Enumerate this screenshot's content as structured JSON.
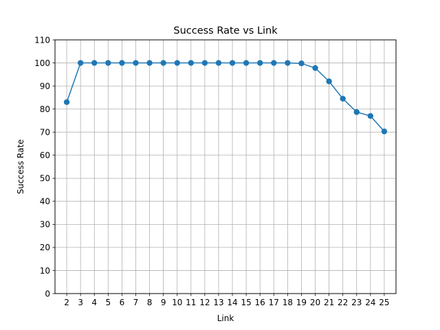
{
  "chart_data": {
    "type": "line",
    "title": "Success Rate vs Link",
    "xlabel": "Link",
    "ylabel": "Success Rate",
    "x": [
      2,
      3,
      4,
      5,
      6,
      7,
      8,
      9,
      10,
      11,
      12,
      13,
      14,
      15,
      16,
      17,
      18,
      19,
      20,
      21,
      22,
      23,
      24,
      25
    ],
    "series": [
      {
        "values": [
          83,
          100,
          100,
          100,
          100,
          100,
          100,
          100,
          100,
          100,
          100,
          100,
          100,
          100,
          100,
          100,
          100,
          99.8,
          97.8,
          92,
          84.5,
          78.7,
          77,
          70.3
        ],
        "color": "#1f77b4",
        "marker": "circle"
      }
    ],
    "xlim": [
      1.15,
      25.85
    ],
    "ylim": [
      0,
      110
    ],
    "y_ticks": [
      0,
      10,
      20,
      30,
      40,
      50,
      60,
      70,
      80,
      90,
      100,
      110
    ],
    "x_ticks": [
      "2",
      "3",
      "4",
      "5",
      "6",
      "7",
      "8",
      "9",
      "10",
      "11",
      "12",
      "13",
      "14",
      "15",
      "16",
      "17",
      "18",
      "19",
      "20",
      "21",
      "22",
      "23",
      "24",
      "25"
    ],
    "grid": true,
    "legend": "none"
  }
}
